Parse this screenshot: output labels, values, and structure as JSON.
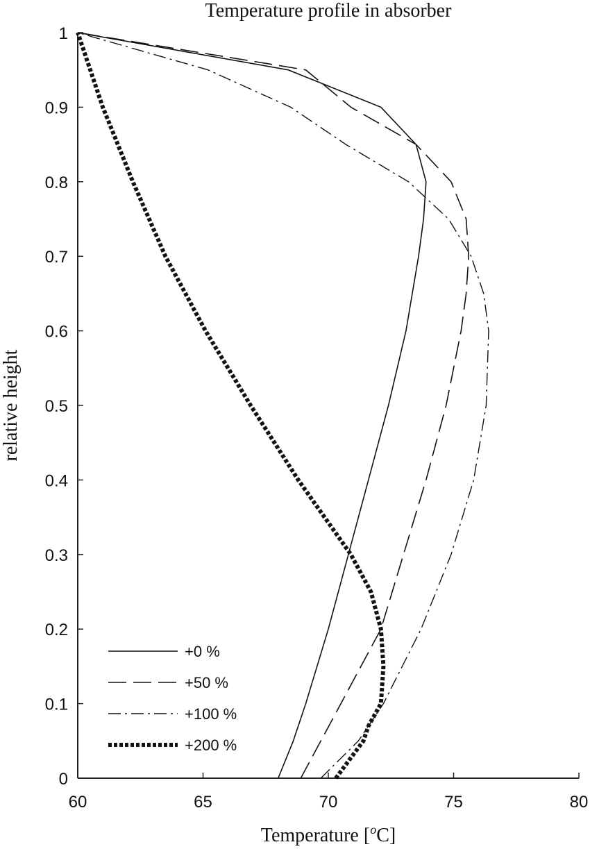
{
  "chart_data": {
    "type": "line",
    "title": "Temperature profile in absorber",
    "xlabel": "Temperature [oC]",
    "xlabel_parts": {
      "pre": "Temperature [",
      "sup": "o",
      "post": "C]"
    },
    "ylabel": "relative height",
    "xlim": [
      60,
      80
    ],
    "ylim": [
      0,
      1
    ],
    "xticks": [
      60,
      65,
      70,
      75,
      80
    ],
    "xtick_labels": [
      "60",
      "65",
      "70",
      "75",
      "80"
    ],
    "yticks": [
      0,
      0.1,
      0.2,
      0.3,
      0.4,
      0.5,
      0.6,
      0.7,
      0.8,
      0.9,
      1
    ],
    "ytick_labels": [
      "0",
      "0.1",
      "0.2",
      "0.3",
      "0.4",
      "0.5",
      "0.6",
      "0.7",
      "0.8",
      "0.9",
      "1"
    ],
    "grid": false,
    "legend_placement": "bottom-left",
    "series": [
      {
        "name": "+0 %",
        "style": "solid",
        "points": [
          [
            68.0,
            0
          ],
          [
            68.6,
            0.05
          ],
          [
            69.1,
            0.1
          ],
          [
            70.0,
            0.2
          ],
          [
            70.8,
            0.3
          ],
          [
            71.6,
            0.4
          ],
          [
            72.4,
            0.5
          ],
          [
            73.1,
            0.6
          ],
          [
            73.6,
            0.7
          ],
          [
            73.8,
            0.75
          ],
          [
            73.9,
            0.8
          ],
          [
            73.5,
            0.85
          ],
          [
            72.1,
            0.9
          ],
          [
            68.4,
            0.95
          ],
          [
            60,
            1
          ]
        ]
      },
      {
        "name": "+50 %",
        "style": "dashed",
        "points": [
          [
            68.9,
            0
          ],
          [
            69.7,
            0.05
          ],
          [
            70.5,
            0.1
          ],
          [
            72.1,
            0.2
          ],
          [
            73.0,
            0.3
          ],
          [
            73.9,
            0.4
          ],
          [
            74.7,
            0.5
          ],
          [
            75.3,
            0.6
          ],
          [
            75.5,
            0.65
          ],
          [
            75.6,
            0.7
          ],
          [
            75.5,
            0.75
          ],
          [
            74.9,
            0.8
          ],
          [
            73.5,
            0.85
          ],
          [
            70.9,
            0.9
          ],
          [
            69.1,
            0.95
          ],
          [
            60,
            1
          ]
        ]
      },
      {
        "name": "+100 %",
        "style": "dashdot",
        "points": [
          [
            69.7,
            0
          ],
          [
            71.2,
            0.05
          ],
          [
            72.2,
            0.1
          ],
          [
            73.7,
            0.2
          ],
          [
            74.9,
            0.3
          ],
          [
            75.8,
            0.4
          ],
          [
            76.3,
            0.5
          ],
          [
            76.4,
            0.6
          ],
          [
            76.2,
            0.65
          ],
          [
            75.7,
            0.7
          ],
          [
            74.8,
            0.75
          ],
          [
            73.2,
            0.8
          ],
          [
            70.7,
            0.85
          ],
          [
            68.5,
            0.9
          ],
          [
            65.2,
            0.95
          ],
          [
            60,
            1
          ]
        ]
      },
      {
        "name": "+200 %",
        "style": "dotted",
        "points": [
          [
            70.3,
            0
          ],
          [
            71.4,
            0.05
          ],
          [
            71.6,
            0.07
          ],
          [
            72.1,
            0.1
          ],
          [
            72.2,
            0.15
          ],
          [
            72.1,
            0.2
          ],
          [
            71.7,
            0.25
          ],
          [
            70.9,
            0.3
          ],
          [
            68.8,
            0.4
          ],
          [
            66.9,
            0.5
          ],
          [
            65.1,
            0.6
          ],
          [
            63.5,
            0.7
          ],
          [
            62.2,
            0.8
          ],
          [
            61.0,
            0.9
          ],
          [
            60,
            1
          ]
        ]
      }
    ]
  }
}
